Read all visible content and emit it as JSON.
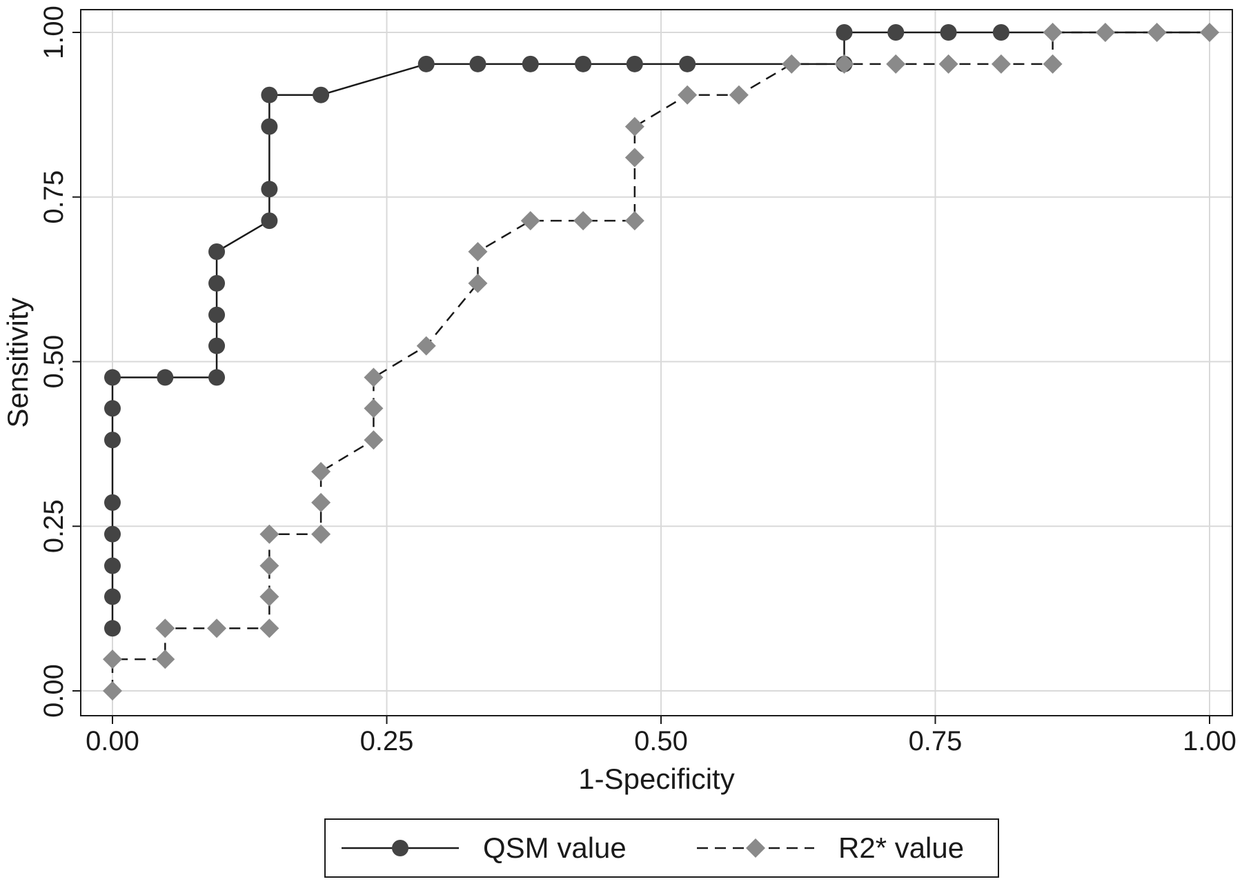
{
  "chart_data": {
    "type": "line",
    "title": "",
    "xlabel": "1-Specificity",
    "ylabel": "Sensitivity",
    "xlim": [
      0,
      1
    ],
    "ylim": [
      0,
      1
    ],
    "x_ticks": [
      "0.00",
      "0.25",
      "0.50",
      "0.75",
      "1.00"
    ],
    "y_ticks": [
      "0.00",
      "0.25",
      "0.50",
      "0.75",
      "1.00"
    ],
    "grid": true,
    "legend_position": "bottom",
    "series": [
      {
        "name": "QSM value",
        "line_style": "solid",
        "marker": "circle",
        "color": "#444444",
        "points": [
          [
            0.0,
            0.095
          ],
          [
            0.0,
            0.143
          ],
          [
            0.0,
            0.19
          ],
          [
            0.0,
            0.238
          ],
          [
            0.0,
            0.286
          ],
          [
            0.0,
            0.381
          ],
          [
            0.0,
            0.429
          ],
          [
            0.0,
            0.476
          ],
          [
            0.048,
            0.476
          ],
          [
            0.095,
            0.476
          ],
          [
            0.095,
            0.524
          ],
          [
            0.095,
            0.571
          ],
          [
            0.095,
            0.619
          ],
          [
            0.095,
            0.667
          ],
          [
            0.143,
            0.714
          ],
          [
            0.143,
            0.762
          ],
          [
            0.143,
            0.857
          ],
          [
            0.143,
            0.905
          ],
          [
            0.19,
            0.905
          ],
          [
            0.286,
            0.952
          ],
          [
            0.333,
            0.952
          ],
          [
            0.381,
            0.952
          ],
          [
            0.429,
            0.952
          ],
          [
            0.476,
            0.952
          ],
          [
            0.524,
            0.952
          ],
          [
            0.667,
            0.952
          ],
          [
            0.667,
            1.0
          ],
          [
            0.714,
            1.0
          ],
          [
            0.762,
            1.0
          ],
          [
            0.81,
            1.0
          ],
          [
            0.857,
            1.0
          ],
          [
            0.905,
            1.0
          ],
          [
            0.952,
            1.0
          ],
          [
            1.0,
            1.0
          ]
        ],
        "markers_until_x": 0.81
      },
      {
        "name": "R2* value",
        "line_style": "dashed",
        "marker": "diamond",
        "color": "#8a8a8a",
        "points": [
          [
            0.0,
            0.0
          ],
          [
            0.0,
            0.048
          ],
          [
            0.048,
            0.048
          ],
          [
            0.048,
            0.095
          ],
          [
            0.095,
            0.095
          ],
          [
            0.143,
            0.095
          ],
          [
            0.143,
            0.143
          ],
          [
            0.143,
            0.19
          ],
          [
            0.143,
            0.238
          ],
          [
            0.19,
            0.238
          ],
          [
            0.19,
            0.286
          ],
          [
            0.19,
            0.333
          ],
          [
            0.238,
            0.381
          ],
          [
            0.238,
            0.429
          ],
          [
            0.238,
            0.476
          ],
          [
            0.286,
            0.524
          ],
          [
            0.333,
            0.619
          ],
          [
            0.333,
            0.667
          ],
          [
            0.381,
            0.714
          ],
          [
            0.429,
            0.714
          ],
          [
            0.476,
            0.714
          ],
          [
            0.476,
            0.81
          ],
          [
            0.476,
            0.857
          ],
          [
            0.524,
            0.905
          ],
          [
            0.571,
            0.905
          ],
          [
            0.619,
            0.952
          ],
          [
            0.667,
            0.952
          ],
          [
            0.714,
            0.952
          ],
          [
            0.762,
            0.952
          ],
          [
            0.81,
            0.952
          ],
          [
            0.857,
            0.952
          ],
          [
            0.857,
            1.0
          ],
          [
            0.905,
            1.0
          ],
          [
            0.952,
            1.0
          ],
          [
            1.0,
            1.0
          ]
        ]
      }
    ],
    "legend": [
      {
        "label": "QSM value",
        "marker": "circle",
        "line_style": "solid"
      },
      {
        "label": "R2* value",
        "marker": "diamond",
        "line_style": "dashed"
      }
    ],
    "colors": {
      "qsm": "#444444",
      "r2": "#8a8a8a",
      "grid": "#d9d9d9",
      "axis": "#1a1a1a"
    }
  }
}
